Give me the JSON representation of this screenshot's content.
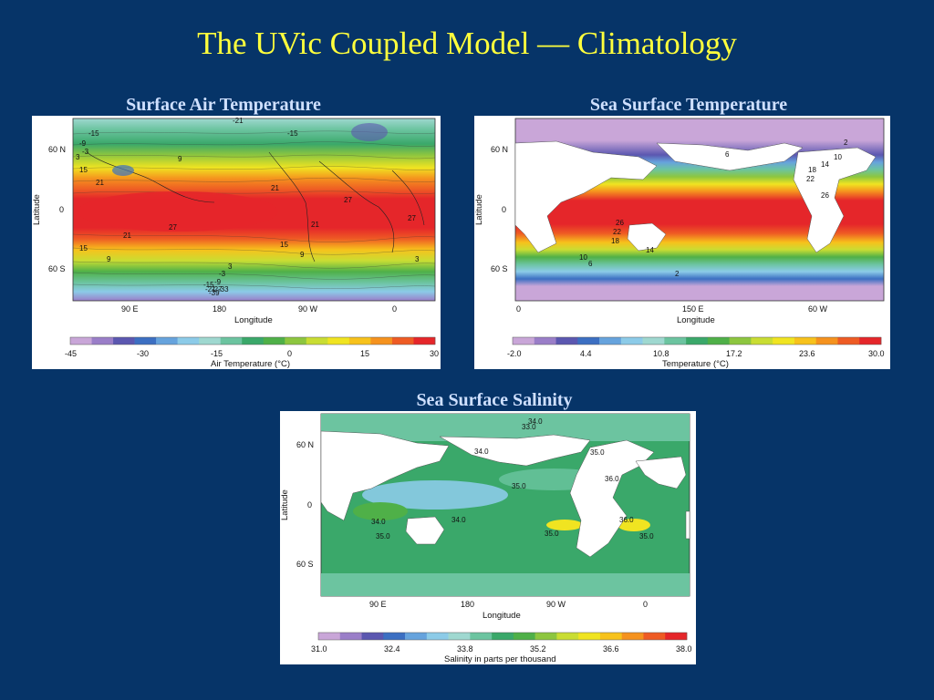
{
  "slide": {
    "title": "The UVic Coupled Model — Climatology"
  },
  "panels": {
    "air": {
      "title": "Surface Air Temperature",
      "ylabel": "Latitude",
      "xlabel": "Longitude",
      "lat_ticks": [
        "60 N",
        "0",
        "60 S"
      ],
      "lon_ticks": [
        "90 E",
        "180",
        "90 W",
        "0"
      ],
      "colorbar": {
        "label": "Air Temperature (°C)",
        "ticks": [
          "-45",
          "-30",
          "-15",
          "0",
          "15",
          "30"
        ],
        "colors": [
          "#c9a6d8",
          "#9a7ec8",
          "#5b57b0",
          "#3c6fc2",
          "#66a3dd",
          "#8ccbe8",
          "#9fd8d0",
          "#6cc4a0",
          "#3aa86a",
          "#4fb048",
          "#8dc63f",
          "#c9dd33",
          "#f0e421",
          "#f7c21c",
          "#f5921e",
          "#ee5b24",
          "#e5262a"
        ]
      },
      "contour_labels": [
        "-21",
        "-15",
        "-15",
        "-9",
        "-3",
        "3",
        "9",
        "15",
        "21",
        "27",
        "21",
        "15",
        "9",
        "3",
        "-3",
        "-9",
        "-15",
        "-21",
        "-27",
        "-33",
        "-39",
        "21",
        "27",
        "27",
        "21",
        "15",
        "9",
        "3"
      ]
    },
    "sst": {
      "title": "Sea Surface Temperature",
      "ylabel": "Latitude",
      "xlabel": "Longitude",
      "lat_ticks": [
        "60 N",
        "0",
        "60 S"
      ],
      "lon_ticks": [
        "0",
        "150 E",
        "60 W"
      ],
      "colorbar": {
        "label": "Temperature (°C)",
        "ticks": [
          "-2.0",
          "4.4",
          "10.8",
          "17.2",
          "23.6",
          "30.0"
        ],
        "colors": [
          "#c9a6d8",
          "#9a7ec8",
          "#5b57b0",
          "#3c6fc2",
          "#66a3dd",
          "#8ccbe8",
          "#9fd8d0",
          "#6cc4a0",
          "#3aa86a",
          "#4fb048",
          "#8dc63f",
          "#c9dd33",
          "#f0e421",
          "#f7c21c",
          "#f5921e",
          "#ee5b24",
          "#e5262a"
        ]
      },
      "contour_labels": [
        "2",
        "6",
        "10",
        "14",
        "18",
        "22",
        "26",
        "26",
        "22",
        "18",
        "14",
        "10",
        "6",
        "2"
      ]
    },
    "sss": {
      "title": "Sea Surface Salinity",
      "ylabel": "Latitude",
      "xlabel": "Longitude",
      "lat_ticks": [
        "60 N",
        "0",
        "60 S"
      ],
      "lon_ticks": [
        "90 E",
        "180",
        "90 W",
        "0"
      ],
      "colorbar": {
        "label": "Salinity in parts per thousand",
        "ticks": [
          "31.0",
          "32.4",
          "33.8",
          "35.2",
          "36.6",
          "38.0"
        ],
        "colors": [
          "#c9a6d8",
          "#9a7ec8",
          "#5b57b0",
          "#3c6fc2",
          "#66a3dd",
          "#8ccbe8",
          "#9fd8d0",
          "#6cc4a0",
          "#3aa86a",
          "#4fb048",
          "#8dc63f",
          "#c9dd33",
          "#f0e421",
          "#f7c21c",
          "#f5921e",
          "#ee5b24",
          "#e5262a"
        ]
      },
      "contour_labels": [
        "34.0",
        "33.0",
        "34.0",
        "35.0",
        "36.0",
        "35.0",
        "34.0",
        "34.0",
        "35.0",
        "36.0",
        "35.0",
        "35.0"
      ]
    }
  }
}
